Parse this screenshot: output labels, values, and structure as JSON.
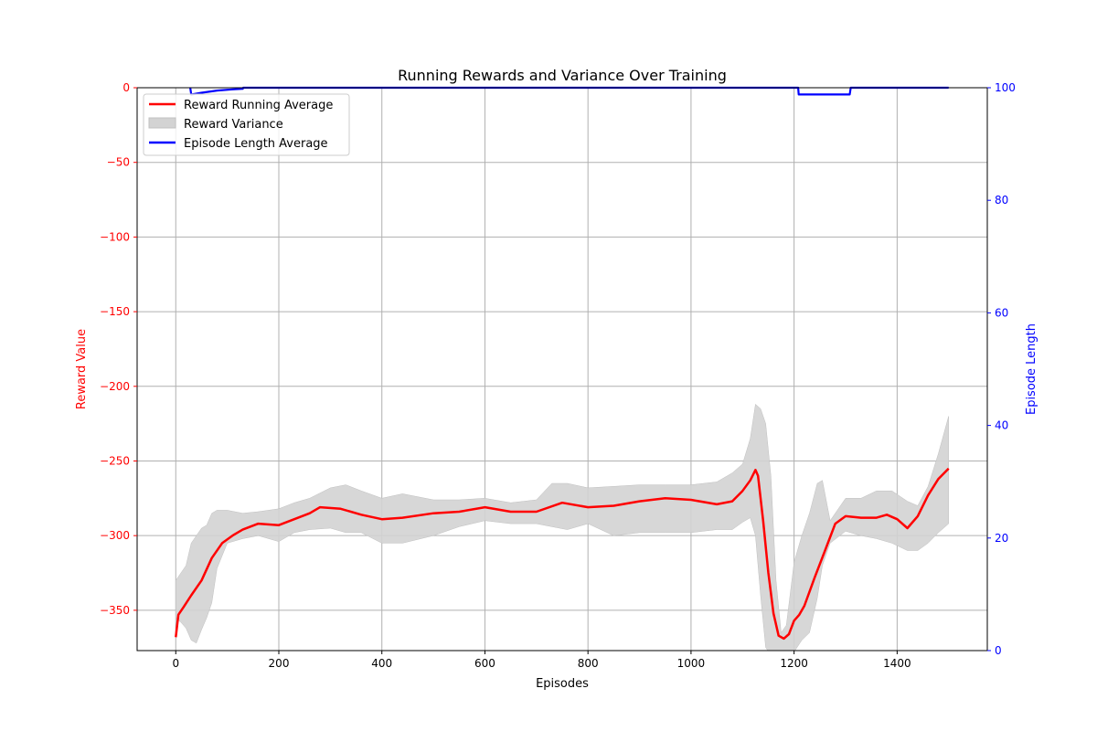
{
  "chart_data": {
    "type": "line",
    "title": "Running Rewards and Variance Over Training",
    "xlabel": "Episodes",
    "ylabel": "Reward Value",
    "y2label": "Episode Length",
    "xlim": [
      -75,
      1575
    ],
    "ylim": [
      -377,
      0
    ],
    "y2lim": [
      0,
      100
    ],
    "x_ticks": [
      0,
      200,
      400,
      600,
      800,
      1000,
      1200,
      1400
    ],
    "y_ticks": [
      0,
      -50,
      -100,
      -150,
      -200,
      -250,
      -300,
      -350
    ],
    "y2_ticks": [
      0,
      20,
      40,
      60,
      80,
      100
    ],
    "grid": true,
    "legend_position": "upper-left",
    "colors": {
      "reward": "#ff0000",
      "variance": "#d3d3d3",
      "length": "#0000ff",
      "grid": "#b0b0b0",
      "axis": "#000000"
    },
    "series": [
      {
        "name": "Reward Running Average",
        "axis": "left",
        "kind": "line",
        "x": [
          0,
          5,
          15,
          30,
          50,
          70,
          90,
          110,
          130,
          160,
          200,
          230,
          260,
          280,
          320,
          360,
          400,
          440,
          500,
          550,
          600,
          650,
          700,
          750,
          800,
          850,
          900,
          950,
          1000,
          1050,
          1080,
          1100,
          1115,
          1125,
          1130,
          1140,
          1150,
          1160,
          1170,
          1180,
          1190,
          1200,
          1210,
          1220,
          1240,
          1260,
          1280,
          1300,
          1330,
          1360,
          1380,
          1400,
          1420,
          1440,
          1460,
          1480,
          1500
        ],
        "y": [
          -368,
          -353,
          -348,
          -340,
          -330,
          -315,
          -305,
          -300,
          -296,
          -292,
          -293,
          -289,
          -285,
          -281,
          -282,
          -286,
          -289,
          -288,
          -285,
          -284,
          -281,
          -284,
          -284,
          -278,
          -281,
          -280,
          -277,
          -275,
          -276,
          -279,
          -277,
          -270,
          -263,
          -256,
          -260,
          -290,
          -325,
          -352,
          -367,
          -369,
          -366,
          -357,
          -353,
          -347,
          -328,
          -310,
          -292,
          -287,
          -288,
          -288,
          -286,
          -289,
          -295,
          -287,
          -273,
          -262,
          -255
        ]
      },
      {
        "name": "Reward Variance",
        "axis": "left",
        "kind": "band",
        "x": [
          0,
          10,
          20,
          30,
          40,
          50,
          60,
          70,
          80,
          100,
          130,
          160,
          200,
          230,
          260,
          300,
          330,
          360,
          400,
          440,
          500,
          550,
          600,
          650,
          700,
          730,
          760,
          800,
          850,
          900,
          950,
          1000,
          1050,
          1080,
          1100,
          1115,
          1125,
          1135,
          1145,
          1155,
          1165,
          1175,
          1185,
          1200,
          1215,
          1230,
          1245,
          1255,
          1270,
          1300,
          1330,
          1360,
          1390,
          1420,
          1440,
          1460,
          1480,
          1500
        ],
        "upper": [
          -330,
          -325,
          -320,
          -305,
          -300,
          -295,
          -293,
          -285,
          -283,
          -283,
          -285,
          -284,
          -282,
          -278,
          -275,
          -268,
          -266,
          -270,
          -275,
          -272,
          -276,
          -276,
          -275,
          -278,
          -276,
          -265,
          -265,
          -268,
          -267,
          -266,
          -266,
          -266,
          -264,
          -258,
          -252,
          -235,
          -212,
          -215,
          -225,
          -260,
          -330,
          -365,
          -360,
          -318,
          -300,
          -285,
          -265,
          -263,
          -290,
          -275,
          -275,
          -270,
          -270,
          -277,
          -280,
          -267,
          -245,
          -220
        ],
        "lower": [
          -355,
          -358,
          -362,
          -370,
          -372,
          -363,
          -355,
          -345,
          -322,
          -305,
          -302,
          -300,
          -304,
          -298,
          -296,
          -295,
          -298,
          -298,
          -305,
          -305,
          -300,
          -294,
          -290,
          -292,
          -292,
          -294,
          -296,
          -292,
          -300,
          -298,
          -298,
          -298,
          -296,
          -296,
          -291,
          -288,
          -300,
          -340,
          -375,
          -380,
          -378,
          -378,
          -378,
          -378,
          -370,
          -365,
          -342,
          -320,
          -305,
          -297,
          -300,
          -302,
          -305,
          -310,
          -310,
          -305,
          -298,
          -292
        ]
      },
      {
        "name": "Episode Length Average",
        "axis": "right",
        "kind": "line",
        "x": [
          28,
          30,
          50,
          80,
          110,
          130,
          131,
          1208,
          1209,
          1308,
          1310,
          1500
        ],
        "y": [
          100,
          98.8,
          99.1,
          99.5,
          99.7,
          99.8,
          100,
          100,
          98.8,
          98.8,
          100,
          100
        ]
      }
    ]
  }
}
